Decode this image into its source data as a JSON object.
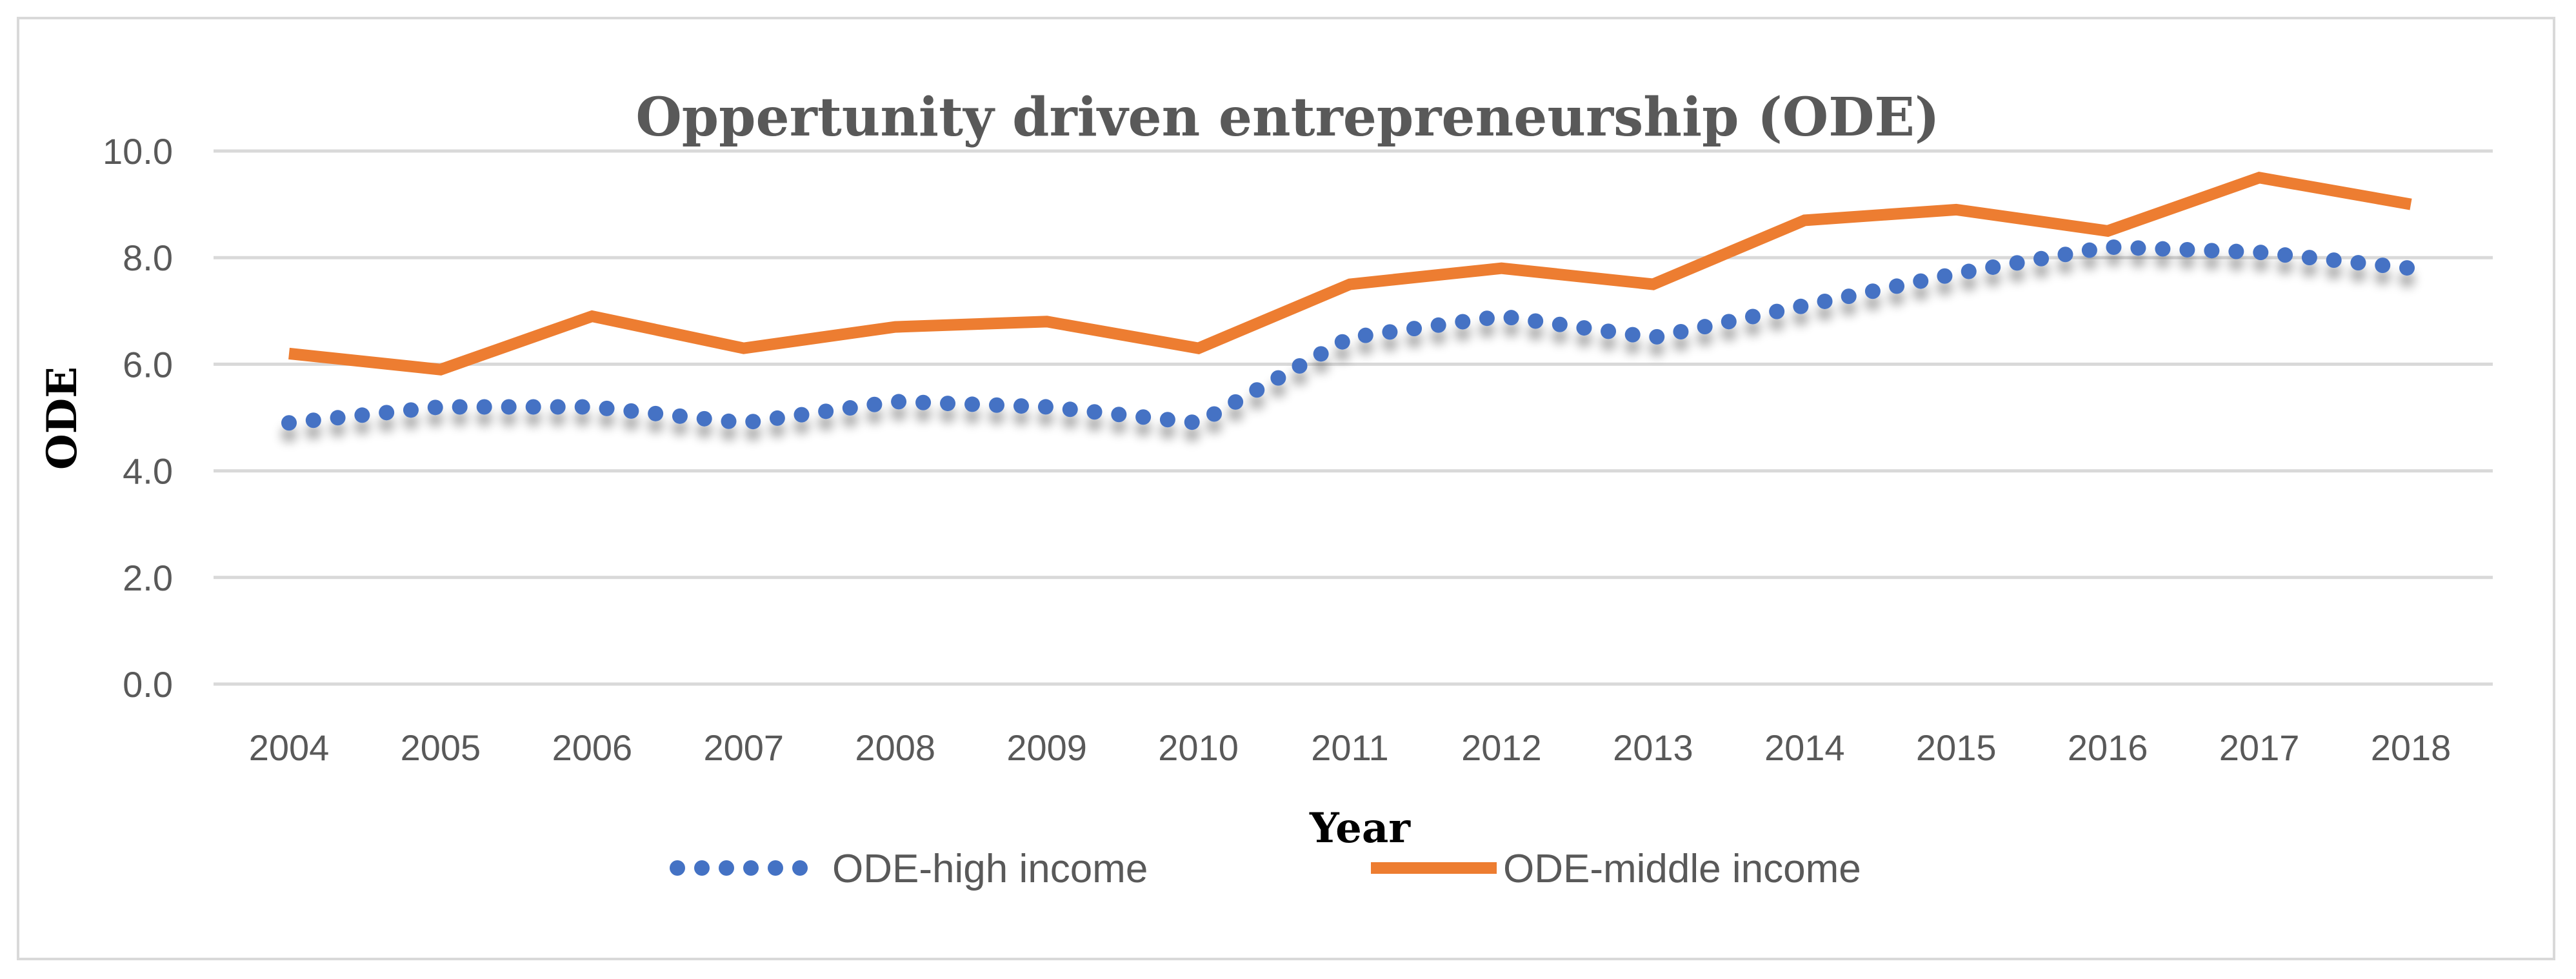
{
  "chart_data": {
    "type": "line",
    "title": "Oppertunity driven entrepreneurship (ODE)",
    "xlabel": "Year",
    "ylabel": "ODE",
    "categories": [
      "2004",
      "2005",
      "2006",
      "2007",
      "2008",
      "2009",
      "2010",
      "2011",
      "2012",
      "2013",
      "2014",
      "2015",
      "2016",
      "2017",
      "2018"
    ],
    "ylim": [
      0,
      10
    ],
    "yticks": [
      "0.0",
      "2.0",
      "4.0",
      "6.0",
      "8.0",
      "10.0"
    ],
    "grid": true,
    "legend_position": "bottom",
    "series": [
      {
        "name": "ODE-high income",
        "color": "#4472c4",
        "style": "dotted",
        "values": [
          4.9,
          5.2,
          5.2,
          4.9,
          5.3,
          5.2,
          4.9,
          6.5,
          6.9,
          6.5,
          7.1,
          7.7,
          8.2,
          8.1,
          7.8
        ]
      },
      {
        "name": "ODE-middle income",
        "color": "#ed7d31",
        "style": "solid",
        "values": [
          6.2,
          5.9,
          6.9,
          6.3,
          6.7,
          6.8,
          6.3,
          7.5,
          7.8,
          7.5,
          8.7,
          8.9,
          8.5,
          9.5,
          9.0
        ]
      }
    ]
  }
}
